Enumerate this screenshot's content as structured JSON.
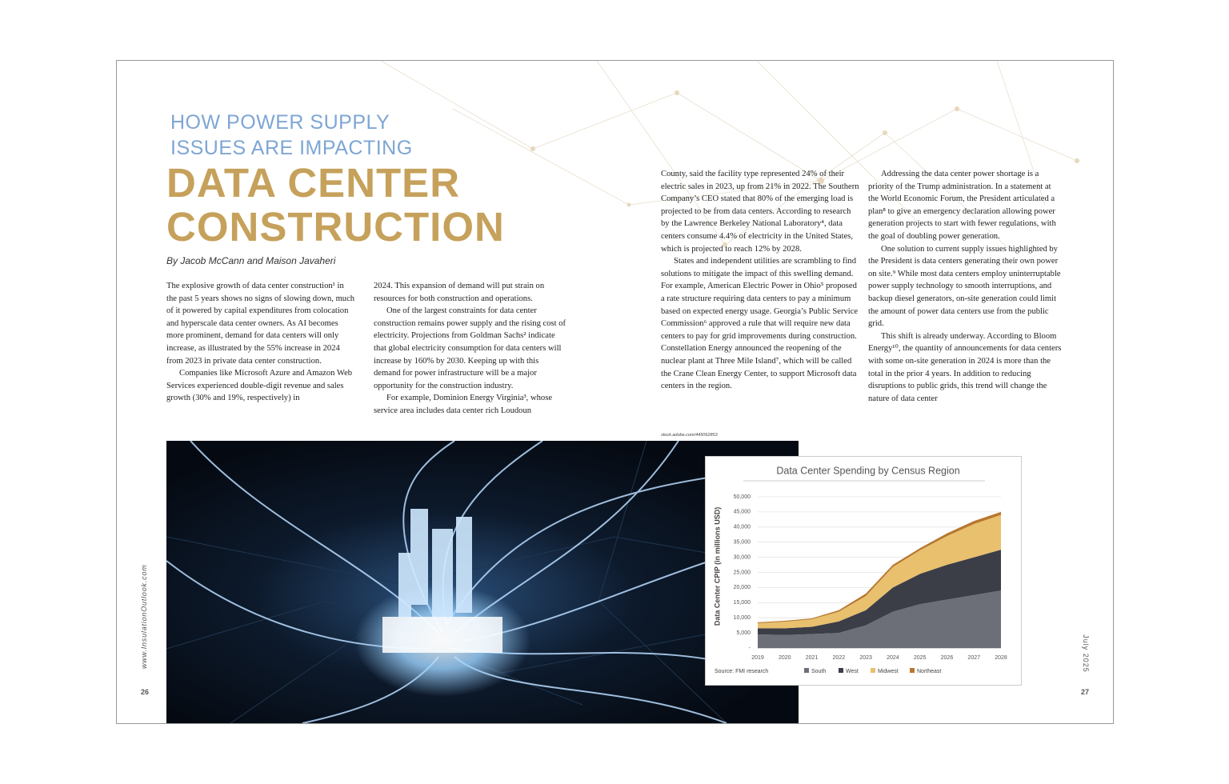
{
  "header": {
    "kicker": [
      "HOW POWER SUPPLY",
      "ISSUES ARE IMPACTING"
    ],
    "title": [
      "DATA CENTER",
      "CONSTRUCTION"
    ],
    "byline": "By Jacob McCann and Maison Javaheri"
  },
  "columns": [
    [
      "The explosive growth of data center construction¹ in the past 5 years shows no signs of slowing down, much of it powered by capital expenditures from colocation and hyperscale data center owners. As AI becomes more prominent, demand for data centers will only increase, as illustrated by the 55% increase in 2024 from 2023 in private data center construction.",
      "Companies like Microsoft Azure and Amazon Web Services experienced double-digit revenue and sales growth (30% and 19%, respectively) in"
    ],
    [
      "2024. This expansion of demand will put strain on resources for both construction and operations.",
      "One of the largest constraints for data center construction remains power supply and the rising cost of electricity. Projections from Goldman Sachs² indicate that global electricity consumption for data centers will increase by 160% by 2030. Keeping up with this demand for power infrastructure will be a major opportunity for the construction industry.",
      "For example, Dominion Energy Virginia³, whose service area includes data center rich Loudoun"
    ],
    [
      "County, said the facility type represented 24% of their electric sales in 2023, up from 21% in 2022. The Southern Company’s CEO stated that 80% of the emerging load is projected to be from data centers. According to research by the Lawrence Berkeley National Laboratory⁴, data centers consume 4.4% of electricity in the United States, which is projected to reach 12% by 2028.",
      "States and independent utilities are scrambling to find solutions to mitigate the impact of this swelling demand. For example, American Electric Power in Ohio⁵ proposed a rate structure requiring data centers to pay a minimum based on expected energy usage. Georgia’s Public Service Commission⁶ approved a rule that will require new data centers to pay for grid improvements during construction. Constellation Energy announced the reopening of the nuclear plant at Three Mile Island⁷, which will be called the Crane Clean Energy Center, to support Microsoft data centers in the region."
    ],
    [
      "Addressing the data center power shortage is a priority of the Trump administration. In a statement at the World Economic Forum, the President articulated a plan⁸ to give an emergency declaration allowing power generation projects to start with fewer regulations, with the goal of doubling power generation.",
      "One solution to current supply issues highlighted by the President is data centers generating their own power on site.⁹ While most data centers employ uninterruptable power supply technology to smooth interruptions, and backup diesel generators, on-site generation could limit the amount of power data centers use from the public grid.",
      "This shift is already underway. According to Bloom Energy¹⁰, the quantity of announcements for data centers with some on-site generation in 2024 is more than the total in the prior 4 years. In addition to reducing disruptions to public grids, this trend will change the nature of data center"
    ]
  ],
  "photo_credit": "stock.adobe.com/445062853",
  "footer": {
    "website": "www.InsulationOutlook.com",
    "left_page": "26",
    "issue": "July 2025",
    "right_page": "27"
  },
  "chart_data": {
    "type": "stacked-area",
    "title": "Data Center Spending by Census Region",
    "y_label": "Data Center CPIP (in millions USD)",
    "source": "Source: FMI research",
    "x": [
      2019,
      2020,
      2021,
      2022,
      2023,
      2024,
      2025,
      2026,
      2027,
      2028
    ],
    "xlim": [
      2019,
      2028
    ],
    "ylim": [
      0,
      50000
    ],
    "yticks": [
      {
        "value": 0,
        "label": "-"
      },
      {
        "value": 5000,
        "label": "5,000"
      },
      {
        "value": 10000,
        "label": "10,000"
      },
      {
        "value": 15000,
        "label": "15,000"
      },
      {
        "value": 20000,
        "label": "20,000"
      },
      {
        "value": 25000,
        "label": "25,000"
      },
      {
        "value": 30000,
        "label": "30,000"
      },
      {
        "value": 35000,
        "label": "35,000"
      },
      {
        "value": 40000,
        "label": "40,000"
      },
      {
        "value": 45000,
        "label": "45,000"
      },
      {
        "value": 50000,
        "label": "50,000"
      }
    ],
    "grid": true,
    "series": [
      {
        "name": "South",
        "color": "#6c6f77",
        "values": [
          4500,
          4300,
          4600,
          5000,
          7500,
          12000,
          14500,
          16000,
          17500,
          19000
        ]
      },
      {
        "name": "West",
        "color": "#3b3e46",
        "values": [
          2000,
          2200,
          2400,
          3800,
          5000,
          8000,
          10000,
          11500,
          12500,
          13500
        ]
      },
      {
        "name": "Midwest",
        "color": "#e8c06e",
        "values": [
          1700,
          2200,
          2500,
          3200,
          4700,
          6800,
          7800,
          9500,
          11000,
          11500
        ]
      },
      {
        "name": "Northeast",
        "color": "#b8772e",
        "values": [
          300,
          300,
          300,
          500,
          800,
          700,
          700,
          900,
          1000,
          1000
        ]
      }
    ]
  }
}
